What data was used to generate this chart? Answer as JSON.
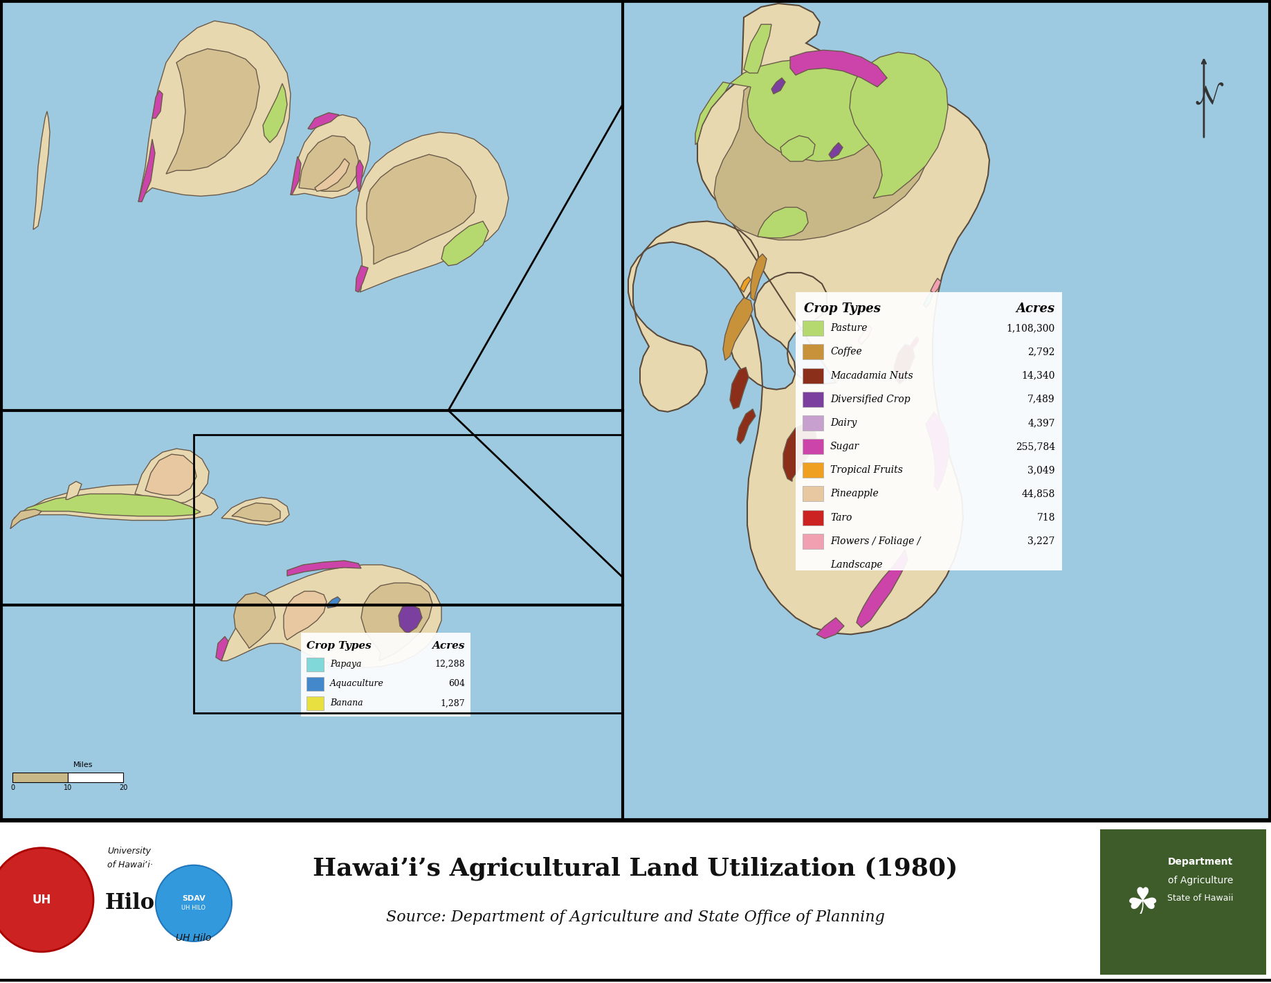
{
  "title": "Hawaiʼiʼs Agricultural Land Utilization (1980)",
  "subtitle": "Source: Department of Agriculture and State Office of Planning",
  "ocean_color": "#9ecae1",
  "ocean_color2": "#b8d9e8",
  "map_border_color": "#111111",
  "terrain_base": "#e8d8b0",
  "terrain_dark": "#c8b888",
  "terrain_mid": "#d4c090",
  "pasture": "#b5d96e",
  "sugar": "#cc44aa",
  "mac_nuts": "#8b2e1a",
  "coffee": "#c8923a",
  "div_crop": "#7b3fa0",
  "dairy": "#c8a0d0",
  "trop_fruit": "#f0a020",
  "pineapple": "#e8c8a0",
  "taro": "#cc2222",
  "flowers": "#f0a0b0",
  "papaya": "#80d8d8",
  "aquaculture": "#4488cc",
  "banana": "#e8e040",
  "footer_bg": "#ffffff",
  "dept_ag_bg": "#3d5c2a",
  "legend_right": {
    "title": "Crop Types",
    "title2": "Acres",
    "items": [
      {
        "label": "Pasture",
        "color": "#b5d96e",
        "acres": "1,108,300"
      },
      {
        "label": "Coffee",
        "color": "#c8923a",
        "acres": "2,792"
      },
      {
        "label": "Macadamia Nuts",
        "color": "#8b2e1a",
        "acres": "14,340"
      },
      {
        "label": "Diversified Crop",
        "color": "#7b3fa0",
        "acres": "7,489"
      },
      {
        "label": "Dairy",
        "color": "#c8a0d0",
        "acres": "4,397"
      },
      {
        "label": "Sugar",
        "color": "#cc44aa",
        "acres": "255,784"
      },
      {
        "label": "Tropical Fruits",
        "color": "#f0a020",
        "acres": "3,049"
      },
      {
        "label": "Pineapple",
        "color": "#e8c8a0",
        "acres": "44,858"
      },
      {
        "label": "Taro",
        "color": "#cc2222",
        "acres": "718"
      },
      {
        "label": "Flowers / Foliage /",
        "color": "#f0a0b0",
        "acres": "3,227"
      },
      {
        "label": "Landscape",
        "color": null,
        "acres": null
      }
    ]
  },
  "legend_left": {
    "title": "Crop Types",
    "title2": "Acres",
    "items": [
      {
        "label": "Papaya",
        "color": "#80d8d8",
        "acres": "12,288"
      },
      {
        "label": "Aquaculture",
        "color": "#4488cc",
        "acres": "604"
      },
      {
        "label": "Banana",
        "color": "#e8e040",
        "acres": "1,287"
      }
    ]
  },
  "scalebar_ticks": [
    "0",
    "10",
    "20"
  ]
}
